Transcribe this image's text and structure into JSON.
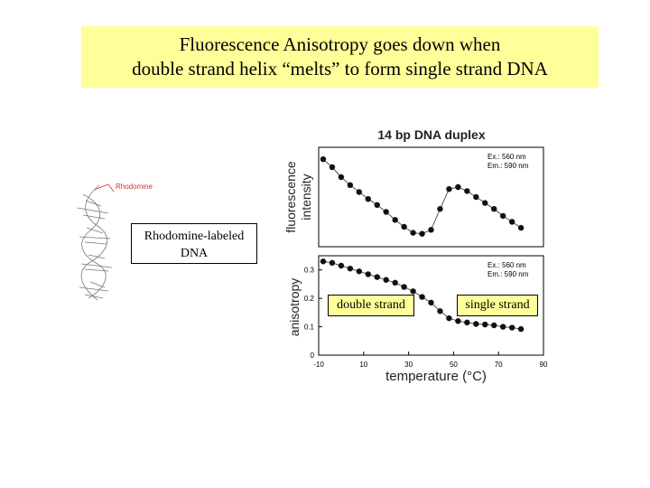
{
  "title": {
    "line1": "Fluorescence Anisotropy goes down when",
    "line2": "double strand helix “melts” to form single strand DNA"
  },
  "molecule": {
    "dye_label": "Rhodomine",
    "callout": {
      "line1": "Rhodomine-labeled",
      "line2": "DNA"
    }
  },
  "annotations": {
    "double_strand": "double strand",
    "single_strand": "single strand"
  },
  "chart_data": [
    {
      "type": "scatter",
      "title": "14 bp DNA duplex",
      "xlabel": "",
      "ylabel": "fluorescence intensity",
      "ylabel_lines": [
        "fluorescence",
        "intensity"
      ],
      "legend": {
        "line1": "Ex.: 560 nm",
        "line2": "Em.: 590 nm"
      },
      "x": [
        -8,
        -4,
        0,
        4,
        8,
        12,
        16,
        20,
        24,
        28,
        32,
        36,
        40,
        44,
        48,
        52,
        56,
        60,
        64,
        68,
        72,
        76,
        80
      ],
      "y": [
        0.88,
        0.8,
        0.7,
        0.62,
        0.55,
        0.48,
        0.42,
        0.35,
        0.27,
        0.2,
        0.14,
        0.13,
        0.17,
        0.38,
        0.58,
        0.6,
        0.56,
        0.5,
        0.44,
        0.38,
        0.31,
        0.25,
        0.19
      ],
      "ylim": [
        0,
        1
      ],
      "xlim": [
        -10,
        90
      ],
      "yticks_visible": false
    },
    {
      "type": "scatter",
      "title": "",
      "xlabel": "temperature (°C)",
      "ylabel": "anisotropy",
      "legend": {
        "line1": "Ex.: 560 nm",
        "line2": "Em.: 590 nm"
      },
      "x": [
        -8,
        -4,
        0,
        4,
        8,
        12,
        16,
        20,
        24,
        28,
        32,
        36,
        40,
        44,
        48,
        52,
        56,
        60,
        64,
        68,
        72,
        76,
        80
      ],
      "y": [
        0.33,
        0.325,
        0.315,
        0.305,
        0.295,
        0.285,
        0.275,
        0.265,
        0.255,
        0.24,
        0.225,
        0.205,
        0.185,
        0.155,
        0.13,
        0.12,
        0.115,
        0.11,
        0.108,
        0.105,
        0.1,
        0.097,
        0.092
      ],
      "ylim": [
        0,
        0.35
      ],
      "xlim": [
        -10,
        90
      ],
      "yticks": [
        "0",
        "0.1",
        "0.2",
        "0.3"
      ],
      "ytick_values": [
        0,
        0.1,
        0.2,
        0.3
      ],
      "xticks": [
        "-10",
        "10",
        "30",
        "50",
        "70",
        "90"
      ],
      "xtick_values": [
        -10,
        10,
        30,
        50,
        70,
        90
      ]
    }
  ]
}
